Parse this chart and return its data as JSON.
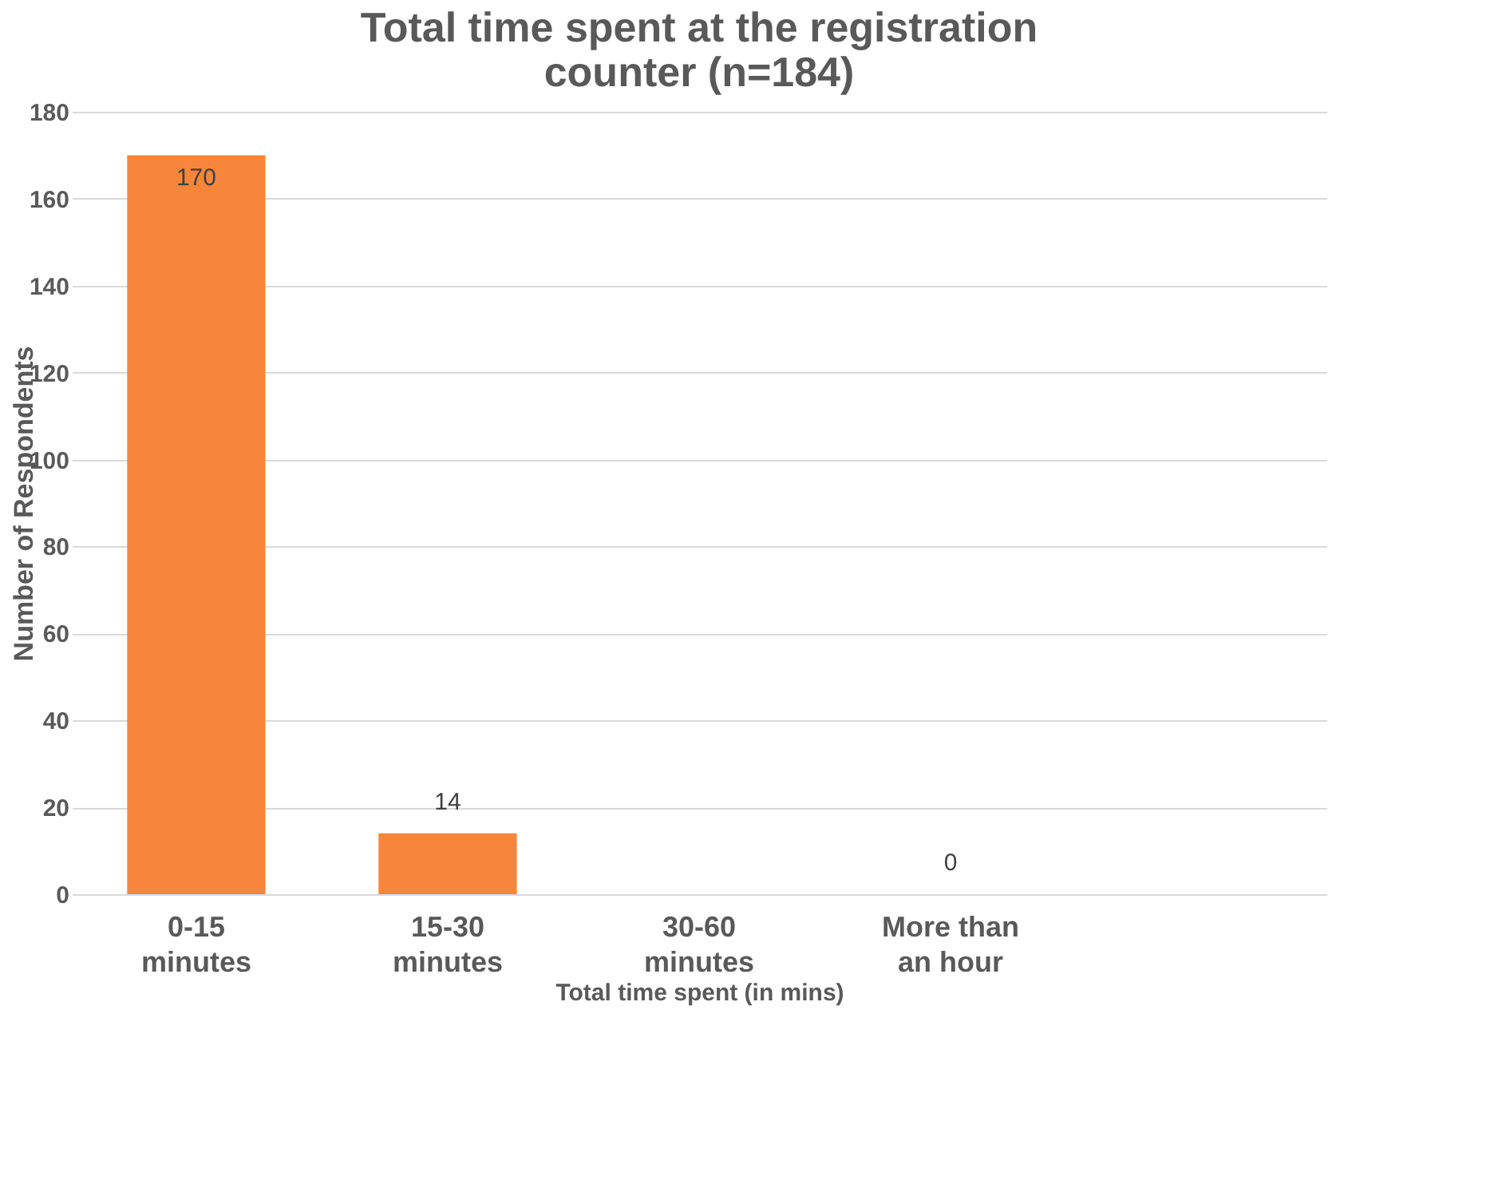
{
  "chart_data": {
    "type": "bar",
    "title": "Total time spent at the registration\ncounter (n=184)",
    "xlabel": "Total time spent (in mins)",
    "ylabel": "Number of Respondents",
    "categories": [
      "0-15\nminutes",
      "15-30\nminutes",
      "30-60\nminutes",
      "More than\nan hour",
      null
    ],
    "values": [
      170,
      14,
      null,
      0,
      null
    ],
    "color": "#f8863a",
    "ylim": [
      0,
      180
    ],
    "yticks": [
      0,
      20,
      40,
      60,
      80,
      100,
      120,
      140,
      160,
      180
    ],
    "grid": "y",
    "data_labels": true
  }
}
